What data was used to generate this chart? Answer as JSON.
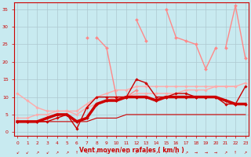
{
  "background_color": "#c8eaf0",
  "grid_color": "#aec8d0",
  "text_color": "#cc0000",
  "xlabel": "Vent moyen/en rafales ( km/h )",
  "x_values": [
    0,
    1,
    2,
    3,
    4,
    5,
    6,
    7,
    8,
    9,
    10,
    11,
    12,
    13,
    14,
    15,
    16,
    17,
    18,
    19,
    20,
    21,
    22,
    23
  ],
  "ylim": [
    -1,
    37
  ],
  "xlim": [
    -0.3,
    23.3
  ],
  "series": [
    {
      "comment": "dark red thin - lower line going from ~3 flat to ~5",
      "y": [
        3,
        3,
        3,
        3,
        3,
        3,
        3,
        3,
        4,
        4,
        4,
        5,
        5,
        5,
        5,
        5,
        5,
        5,
        5,
        5,
        5,
        5,
        5,
        5
      ],
      "color": "#cc0000",
      "lw": 0.8,
      "marker": null,
      "ms": 0,
      "zorder": 3
    },
    {
      "comment": "dark red thick bold - mean wind line with diamonds",
      "y": [
        3,
        3,
        3,
        4,
        5,
        5,
        3,
        4,
        8,
        9,
        9,
        10,
        10,
        10,
        9,
        10,
        10,
        10,
        10,
        10,
        10,
        9,
        8,
        8
      ],
      "color": "#cc0000",
      "lw": 2.5,
      "marker": "D",
      "ms": 2.0,
      "zorder": 5
    },
    {
      "comment": "dark red thin - with spiky diamonds going high at 14=15",
      "y": [
        3,
        3,
        3,
        3,
        4,
        5,
        1,
        7,
        10,
        10,
        10,
        10,
        15,
        14,
        10,
        10,
        11,
        11,
        10,
        10,
        10,
        8,
        8,
        13
      ],
      "color": "#cc0000",
      "lw": 1.0,
      "marker": "D",
      "ms": 1.8,
      "zorder": 4
    },
    {
      "comment": "light pink - upper gentle slope from ~11 to ~14",
      "y": [
        11,
        9,
        7,
        6,
        6,
        6,
        5,
        7,
        8,
        9,
        10,
        10,
        11,
        11,
        11,
        11,
        11,
        12,
        12,
        12,
        13,
        13,
        13,
        14
      ],
      "color": "#ffaaaa",
      "lw": 1.0,
      "marker": "D",
      "ms": 1.8,
      "zorder": 2
    },
    {
      "comment": "light pink - lower gentle slope from ~4 to ~14",
      "y": [
        4,
        4,
        5,
        5,
        6,
        6,
        6,
        8,
        10,
        11,
        12,
        12,
        13,
        13,
        13,
        13,
        13,
        13,
        13,
        13,
        13,
        13,
        13,
        null
      ],
      "color": "#ffaaaa",
      "lw": 1.0,
      "marker": "D",
      "ms": 1.8,
      "zorder": 2
    },
    {
      "comment": "medium pink - big spike series 1: 8=27, 9=24, 10=10, 11=10, 12=12",
      "y": [
        null,
        null,
        null,
        null,
        null,
        null,
        null,
        null,
        27,
        24,
        10,
        10,
        12,
        null,
        null,
        null,
        null,
        null,
        null,
        null,
        null,
        null,
        null,
        null
      ],
      "color": "#ff8888",
      "lw": 1.0,
      "marker": "D",
      "ms": 2.0,
      "zorder": 3
    },
    {
      "comment": "medium pink - spike at 8=27 going up from 7",
      "y": [
        null,
        null,
        null,
        null,
        null,
        null,
        null,
        27,
        null,
        null,
        null,
        null,
        null,
        null,
        null,
        null,
        null,
        null,
        null,
        null,
        null,
        null,
        null,
        null
      ],
      "color": "#ff8888",
      "lw": 1.0,
      "marker": "D",
      "ms": 2.0,
      "zorder": 3
    },
    {
      "comment": "medium pink - big spikes 12=32, 13=26, 15=35, 16=27, 17=26, 18=25, 19=18, 20=24",
      "y": [
        null,
        null,
        null,
        null,
        null,
        null,
        null,
        null,
        null,
        null,
        null,
        null,
        32,
        26,
        null,
        35,
        27,
        26,
        25,
        18,
        24,
        null,
        null,
        null
      ],
      "color": "#ff8888",
      "lw": 1.0,
      "marker": "D",
      "ms": 2.0,
      "zorder": 3
    },
    {
      "comment": "medium pink - 22=36, 21=24, 23=21",
      "y": [
        null,
        null,
        null,
        null,
        null,
        null,
        null,
        null,
        null,
        null,
        null,
        null,
        null,
        null,
        null,
        null,
        null,
        null,
        null,
        null,
        null,
        24,
        36,
        21
      ],
      "color": "#ff8888",
      "lw": 1.0,
      "marker": "D",
      "ms": 2.0,
      "zorder": 3
    }
  ],
  "yticks": [
    0,
    5,
    10,
    15,
    20,
    25,
    30,
    35
  ],
  "xticks": [
    0,
    1,
    2,
    3,
    4,
    5,
    6,
    7,
    8,
    9,
    10,
    11,
    12,
    13,
    14,
    15,
    16,
    17,
    18,
    19,
    20,
    21,
    22,
    23
  ],
  "wind_arrows": [
    "↙",
    "↙",
    "↗",
    "↙",
    "↗",
    "↗",
    "↑",
    "↖",
    "↑",
    "↑",
    "↑",
    "↗",
    "↗",
    "↗",
    "↗",
    "↑",
    "↖",
    "↗",
    "→",
    "→",
    "→",
    "↗",
    "↑",
    "↗"
  ]
}
